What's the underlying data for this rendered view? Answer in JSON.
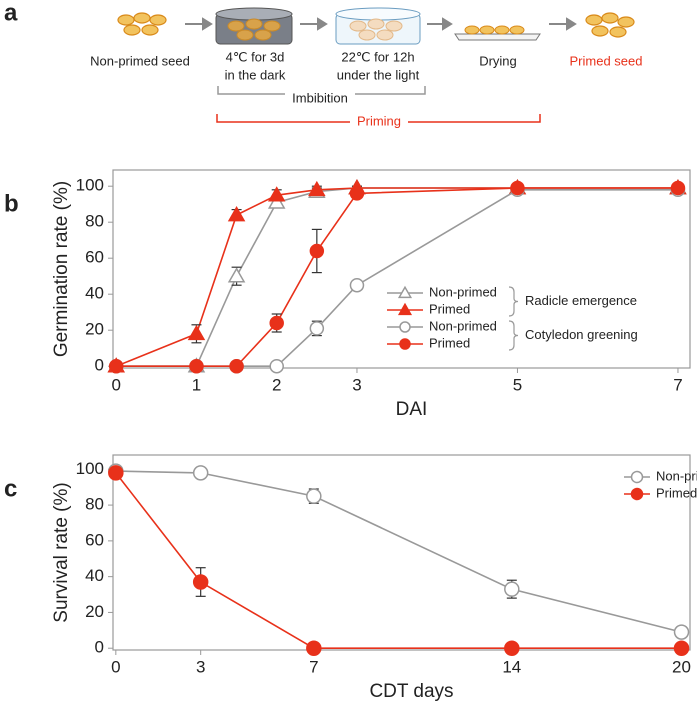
{
  "diagram": {
    "label": "a",
    "steps": [
      {
        "lines": [
          "Non-primed seed"
        ]
      },
      {
        "lines": [
          "4℃ for 3d",
          "in the dark"
        ]
      },
      {
        "lines": [
          "22℃ for 12h",
          "under the light"
        ]
      },
      {
        "lines": [
          "Drying"
        ]
      },
      {
        "lines": [
          "Primed seed"
        ]
      }
    ],
    "brackets": [
      {
        "label": "Imbibition"
      },
      {
        "label": "Priming"
      }
    ]
  },
  "chart_data": [
    {
      "type": "line",
      "panel": "b",
      "x_label": "DAI",
      "y_label": "Germination rate (%)",
      "xlim": [
        -0.04,
        7.15
      ],
      "ylim": [
        -1,
        109
      ],
      "xticks": [
        0,
        1,
        2,
        3,
        5,
        7
      ],
      "yticks": [
        0,
        20,
        40,
        60,
        80,
        100
      ],
      "legend": "lower right",
      "legend_groups": [
        "Radicle emergence",
        "Cotyledon greening"
      ],
      "x": [
        0,
        1,
        1.5,
        2,
        2.5,
        3,
        5,
        7
      ],
      "series": [
        {
          "name": "Non-primed",
          "color": "#999999",
          "marker": "triangle",
          "filled": false,
          "values": [
            0,
            0,
            50,
            91,
            97,
            99,
            99,
            99
          ],
          "errors": [
            0,
            0,
            5,
            3,
            2,
            1,
            1,
            1
          ]
        },
        {
          "name": "Primed",
          "color": "#e8311a",
          "marker": "triangle",
          "filled": true,
          "values": [
            0,
            18,
            84,
            95,
            98,
            99,
            99,
            99
          ],
          "errors": [
            0,
            5,
            3,
            3,
            2,
            1,
            1,
            1
          ]
        },
        {
          "name": "Non-primed",
          "color": "#999999",
          "marker": "circle",
          "filled": false,
          "values": [
            0,
            0,
            0,
            0,
            21,
            45,
            98,
            98
          ],
          "errors": [
            0,
            0,
            0,
            0,
            4,
            1,
            1,
            1
          ]
        },
        {
          "name": "Primed",
          "color": "#e8311a",
          "marker": "circle",
          "filled": true,
          "values": [
            0,
            0,
            0,
            24,
            64,
            96,
            99,
            99
          ],
          "errors": [
            0,
            0,
            0,
            5,
            12,
            1,
            1,
            1
          ]
        }
      ]
    },
    {
      "type": "line",
      "panel": "c",
      "x_label": "CDT days",
      "y_label": "Survival rate (%)",
      "xlim": [
        -0.1,
        20.3
      ],
      "ylim": [
        -1,
        108
      ],
      "xticks": [
        0,
        3,
        7,
        14,
        20
      ],
      "yticks": [
        0,
        20,
        40,
        60,
        80,
        100
      ],
      "legend": "upper right",
      "x": [
        0,
        3,
        7,
        14,
        20
      ],
      "series": [
        {
          "name": "Non-primed",
          "color": "#999999",
          "marker": "circle",
          "filled": false,
          "values": [
            99,
            98,
            85,
            33,
            9
          ],
          "errors": [
            0,
            1,
            4,
            5,
            3
          ]
        },
        {
          "name": "Primed",
          "color": "#e8311a",
          "marker": "circle",
          "filled": true,
          "values": [
            98,
            37,
            0,
            0,
            0
          ],
          "errors": [
            2,
            8,
            0,
            0,
            0
          ]
        }
      ]
    }
  ]
}
